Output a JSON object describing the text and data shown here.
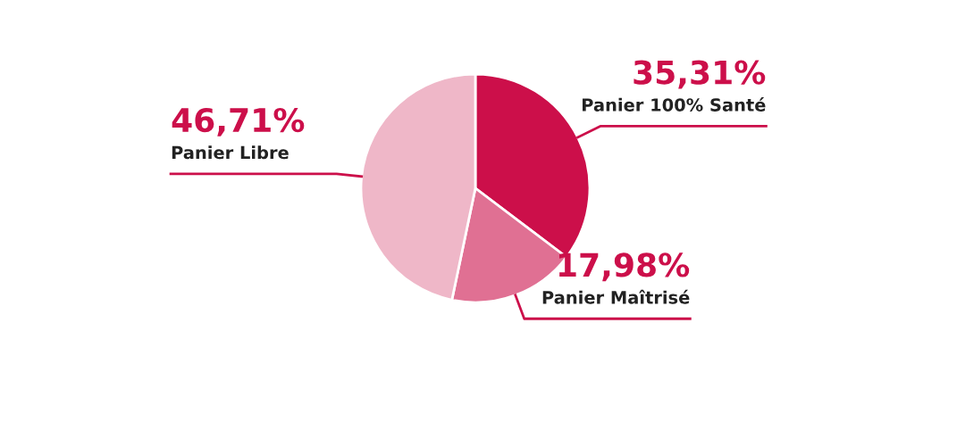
{
  "chart_data": {
    "type": "pie",
    "categories": [
      "Panier 100% Santé",
      "Panier Maîtrisé",
      "Panier Libre"
    ],
    "values": [
      35.31,
      17.98,
      46.71
    ],
    "value_labels": [
      "35,31%",
      "17,98%",
      "46,71%"
    ],
    "colors": [
      "#cc0f4a",
      "#e07093",
      "#efb7c8"
    ],
    "legend": false
  }
}
